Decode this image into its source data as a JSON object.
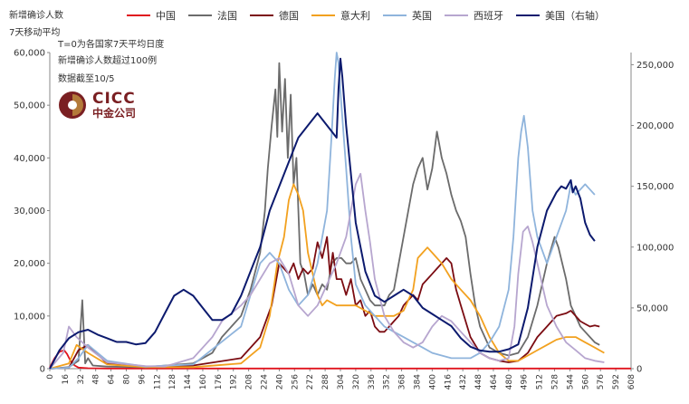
{
  "header": {
    "left_axis_title": "新增确诊人数",
    "subtitle": "7天移动平均",
    "note_t0": "T=0为各国家7天平均日度",
    "note_threshold": "新增确诊人数超过100例",
    "note_date": "数据截至10/5"
  },
  "logo": {
    "name": "CICC",
    "cn": "中金公司"
  },
  "colors": {
    "china": "#e0141e",
    "france": "#6b6b6b",
    "germany": "#7b0c12",
    "italy": "#f2a11f",
    "uk": "#8fb4dc",
    "spain": "#b7a6cf",
    "usa": "#0c1a6e"
  },
  "chart_data": {
    "type": "line",
    "xlabel": "",
    "ylabel": "新增确诊人数",
    "x_ticks": [
      0,
      16,
      32,
      48,
      64,
      80,
      96,
      112,
      128,
      144,
      160,
      176,
      192,
      208,
      224,
      240,
      256,
      272,
      288,
      304,
      320,
      336,
      352,
      368,
      384,
      400,
      416,
      432,
      448,
      464,
      480,
      496,
      512,
      528,
      544,
      560,
      576,
      592,
      608
    ],
    "xlim": [
      0,
      608
    ],
    "ylim": [
      0,
      60000
    ],
    "y_ticks": [
      0,
      10000,
      20000,
      30000,
      40000,
      50000,
      60000
    ],
    "y_tick_labels": [
      "0",
      "10,000",
      "20,000",
      "30,000",
      "40,000",
      "50,000",
      "60,000"
    ],
    "y2lim": [
      0,
      260000
    ],
    "y2_ticks": [
      0,
      50000,
      100000,
      150000,
      200000,
      250000
    ],
    "y2_tick_labels": [
      "0",
      "50,000",
      "100,000",
      "150,000",
      "200,000",
      "250,000"
    ],
    "series": [
      {
        "name": "中国",
        "axis": "left",
        "color_key": "china",
        "x": [
          0,
          5,
          10,
          15,
          18,
          22,
          26,
          30,
          40,
          60,
          100,
          200,
          300,
          400,
          500,
          608
        ],
        "y": [
          200,
          2000,
          3200,
          3500,
          2800,
          1400,
          600,
          200,
          80,
          40,
          30,
          30,
          30,
          30,
          30,
          30
        ]
      },
      {
        "name": "法国",
        "axis": "left",
        "color_key": "france",
        "x": [
          0,
          20,
          30,
          34,
          37,
          40,
          45,
          60,
          100,
          150,
          170,
          180,
          200,
          210,
          220,
          225,
          228,
          232,
          236,
          238,
          240,
          243,
          246,
          249,
          252,
          255,
          258,
          262,
          266,
          270,
          275,
          280,
          285,
          290,
          295,
          300,
          305,
          310,
          315,
          320,
          325,
          330,
          335,
          340,
          345,
          350,
          355,
          360,
          365,
          370,
          375,
          380,
          385,
          390,
          395,
          400,
          405,
          410,
          415,
          420,
          425,
          430,
          435,
          440,
          445,
          450,
          460,
          470,
          480,
          490,
          500,
          510,
          520,
          528,
          532,
          536,
          540,
          545,
          550,
          555,
          560,
          565,
          570,
          575
        ],
        "y": [
          0,
          300,
          1500,
          13000,
          1000,
          2000,
          600,
          400,
          300,
          1000,
          3000,
          6000,
          10000,
          15000,
          22000,
          30000,
          38000,
          46000,
          53000,
          44000,
          58000,
          45000,
          55000,
          40000,
          52000,
          35000,
          40000,
          20000,
          18000,
          14000,
          16000,
          14000,
          16000,
          15000,
          20000,
          21000,
          21000,
          20000,
          20000,
          21000,
          17000,
          15000,
          13000,
          12000,
          12000,
          12000,
          14000,
          15000,
          20000,
          25000,
          30000,
          35000,
          38000,
          40000,
          34000,
          38000,
          45000,
          40000,
          37000,
          33000,
          30000,
          28000,
          25000,
          18000,
          12000,
          8000,
          4000,
          3000,
          2500,
          3000,
          6000,
          12000,
          20000,
          25000,
          23000,
          20000,
          17000,
          12000,
          10000,
          8000,
          7000,
          6000,
          5000,
          4500
        ]
      },
      {
        "name": "德国",
        "axis": "left",
        "color_key": "germany",
        "x": [
          0,
          20,
          30,
          40,
          60,
          100,
          150,
          200,
          220,
          232,
          240,
          245,
          250,
          255,
          260,
          265,
          270,
          275,
          280,
          285,
          290,
          293,
          296,
          300,
          305,
          310,
          315,
          320,
          325,
          330,
          335,
          340,
          345,
          350,
          355,
          360,
          365,
          370,
          375,
          380,
          385,
          390,
          395,
          400,
          405,
          410,
          415,
          420,
          425,
          430,
          440,
          450,
          460,
          470,
          480,
          490,
          500,
          510,
          520,
          530,
          540,
          545,
          550,
          555,
          560,
          565,
          570,
          575
        ],
        "y": [
          0,
          200,
          3500,
          4500,
          1000,
          400,
          600,
          2000,
          6000,
          12000,
          20000,
          19000,
          18000,
          20000,
          17000,
          19000,
          18000,
          19000,
          24000,
          21000,
          25000,
          18000,
          22000,
          17000,
          17000,
          14000,
          17000,
          12000,
          13000,
          10000,
          11000,
          8000,
          7000,
          7000,
          8000,
          9000,
          10000,
          12000,
          13000,
          14000,
          13000,
          16000,
          17000,
          18000,
          19000,
          20000,
          21000,
          20000,
          15000,
          12000,
          6000,
          3000,
          2000,
          1500,
          1200,
          1500,
          3000,
          6000,
          8000,
          10000,
          10500,
          11000,
          10000,
          9000,
          8500,
          8000,
          8200,
          8000
        ]
      },
      {
        "name": "意大利",
        "axis": "left",
        "color_key": "italy",
        "x": [
          0,
          20,
          28,
          40,
          60,
          100,
          150,
          200,
          220,
          230,
          238,
          245,
          250,
          255,
          260,
          265,
          270,
          275,
          280,
          285,
          290,
          300,
          310,
          320,
          330,
          340,
          350,
          360,
          370,
          380,
          385,
          390,
          395,
          400,
          410,
          420,
          430,
          440,
          450,
          460,
          470,
          480,
          490,
          500,
          510,
          520,
          530,
          540,
          550,
          560,
          570,
          580
        ],
        "y": [
          0,
          1000,
          4500,
          3000,
          800,
          300,
          300,
          1000,
          4000,
          10000,
          20000,
          25000,
          32000,
          35000,
          33000,
          30000,
          22000,
          18000,
          14000,
          12000,
          13000,
          12000,
          12000,
          12000,
          11000,
          10000,
          10000,
          10000,
          11000,
          15000,
          21000,
          22000,
          23000,
          22000,
          20000,
          17000,
          15000,
          13000,
          10000,
          6000,
          3000,
          1500,
          1500,
          2500,
          3500,
          4500,
          5500,
          6000,
          6000,
          5000,
          4000,
          3000
        ]
      },
      {
        "name": "英国",
        "axis": "left",
        "color_key": "uk",
        "x": [
          0,
          20,
          30,
          40,
          60,
          100,
          150,
          200,
          210,
          220,
          230,
          240,
          250,
          260,
          270,
          280,
          290,
          295,
          298,
          300,
          302,
          305,
          310,
          315,
          320,
          330,
          340,
          350,
          360,
          370,
          380,
          390,
          400,
          410,
          420,
          430,
          440,
          450,
          460,
          470,
          480,
          485,
          490,
          493,
          496,
          500,
          505,
          510,
          520,
          530,
          540,
          545,
          550,
          555,
          560,
          565,
          570
        ],
        "y": [
          0,
          200,
          2000,
          4500,
          1500,
          400,
          800,
          8000,
          14000,
          20000,
          22000,
          20000,
          15000,
          12000,
          14000,
          20000,
          30000,
          45000,
          55000,
          60000,
          58000,
          50000,
          38000,
          25000,
          16000,
          12000,
          10000,
          8000,
          7000,
          6000,
          5000,
          4000,
          3000,
          2500,
          2000,
          2000,
          2000,
          3000,
          5000,
          8000,
          15000,
          25000,
          40000,
          45000,
          48000,
          42000,
          30000,
          25000,
          20000,
          25000,
          30000,
          35000,
          33000,
          34000,
          35000,
          34000,
          33000
        ]
      },
      {
        "name": "西班牙",
        "axis": "left",
        "color_key": "spain",
        "x": [
          0,
          14,
          20,
          28,
          40,
          60,
          100,
          120,
          150,
          170,
          180,
          200,
          210,
          220,
          230,
          240,
          250,
          260,
          270,
          280,
          290,
          300,
          310,
          315,
          320,
          325,
          330,
          335,
          340,
          350,
          360,
          370,
          380,
          390,
          400,
          410,
          420,
          430,
          440,
          450,
          460,
          470,
          480,
          486,
          490,
          495,
          500,
          505,
          510,
          520,
          530,
          540,
          550,
          560,
          570,
          580
        ],
        "y": [
          0,
          3000,
          8000,
          6000,
          4000,
          1200,
          500,
          400,
          2000,
          6000,
          9000,
          12000,
          14000,
          17000,
          20000,
          21000,
          18000,
          12000,
          10000,
          12000,
          16000,
          20000,
          25000,
          30000,
          35000,
          37000,
          30000,
          24000,
          17000,
          10000,
          7000,
          5000,
          4000,
          5000,
          8000,
          10000,
          9000,
          7000,
          5000,
          3000,
          2000,
          1500,
          2000,
          8000,
          18000,
          26000,
          27000,
          24000,
          20000,
          12000,
          8000,
          5000,
          3500,
          2000,
          1500,
          1200
        ]
      },
      {
        "name": "美国（右轴）",
        "axis": "right",
        "color_key": "usa",
        "x": [
          0,
          10,
          20,
          30,
          40,
          50,
          60,
          70,
          80,
          90,
          100,
          110,
          120,
          130,
          140,
          150,
          160,
          170,
          180,
          190,
          200,
          210,
          220,
          230,
          240,
          250,
          260,
          270,
          280,
          290,
          300,
          302,
          304,
          306,
          310,
          315,
          320,
          330,
          340,
          350,
          360,
          370,
          380,
          390,
          400,
          410,
          420,
          430,
          440,
          450,
          460,
          470,
          480,
          490,
          500,
          510,
          520,
          530,
          535,
          540,
          545,
          547,
          550,
          555,
          560,
          565,
          570
        ],
        "y": [
          0,
          15000,
          25000,
          30000,
          32000,
          28000,
          25000,
          22000,
          22000,
          20000,
          21000,
          30000,
          45000,
          60000,
          65000,
          60000,
          50000,
          40000,
          40000,
          45000,
          60000,
          80000,
          100000,
          130000,
          150000,
          170000,
          190000,
          200000,
          210000,
          200000,
          190000,
          230000,
          255000,
          240000,
          200000,
          160000,
          120000,
          80000,
          60000,
          55000,
          60000,
          65000,
          60000,
          50000,
          45000,
          40000,
          35000,
          25000,
          18000,
          15000,
          14000,
          14000,
          16000,
          20000,
          50000,
          100000,
          130000,
          145000,
          150000,
          148000,
          155000,
          145000,
          150000,
          140000,
          120000,
          110000,
          105000
        ]
      }
    ]
  }
}
